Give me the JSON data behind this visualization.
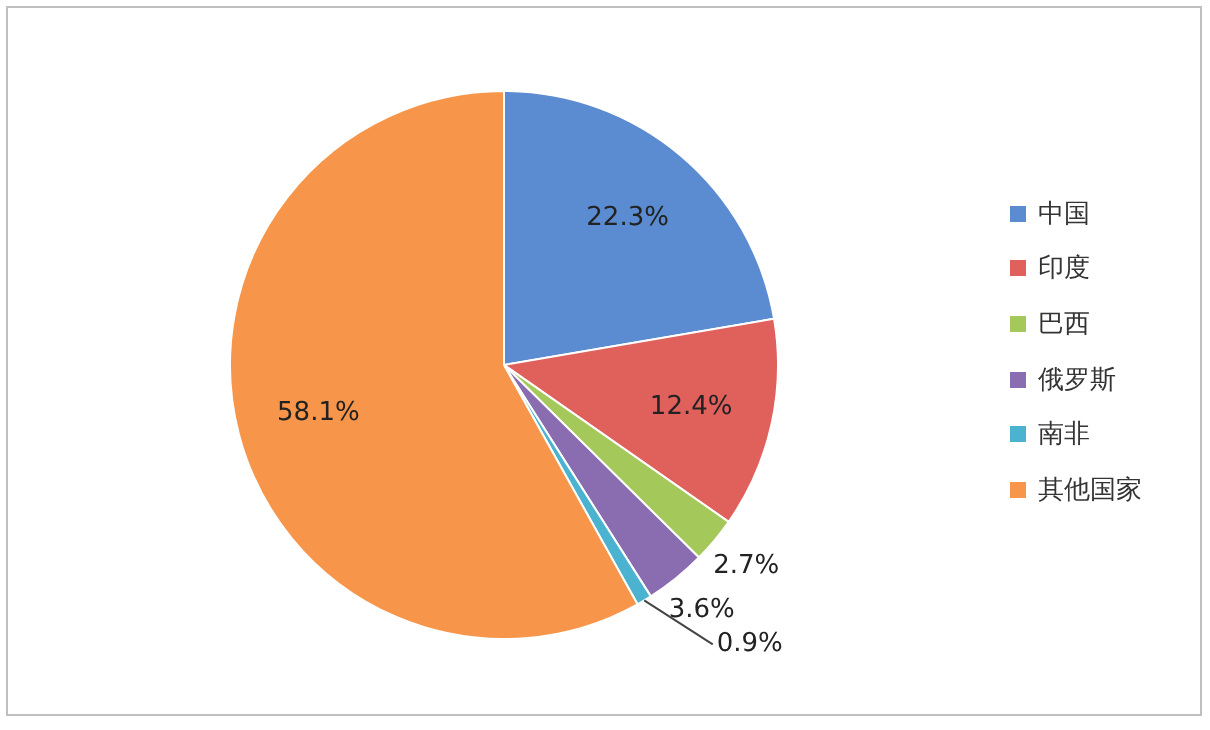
{
  "chart_data": {
    "type": "pie",
    "categories": [
      "中国",
      "印度",
      "巴西",
      "俄罗斯",
      "南非",
      "其他国家"
    ],
    "values": [
      22.3,
      12.4,
      2.7,
      3.6,
      0.9,
      58.1
    ],
    "value_labels": [
      "22.3%",
      "12.4%",
      "2.7%",
      "3.6%",
      "0.9%",
      "58.1%"
    ],
    "colors": [
      "#5b8bd0",
      "#e0605c",
      "#a5c85a",
      "#8a6cb0",
      "#4bb3cf",
      "#f7964a"
    ],
    "legend": "right"
  }
}
